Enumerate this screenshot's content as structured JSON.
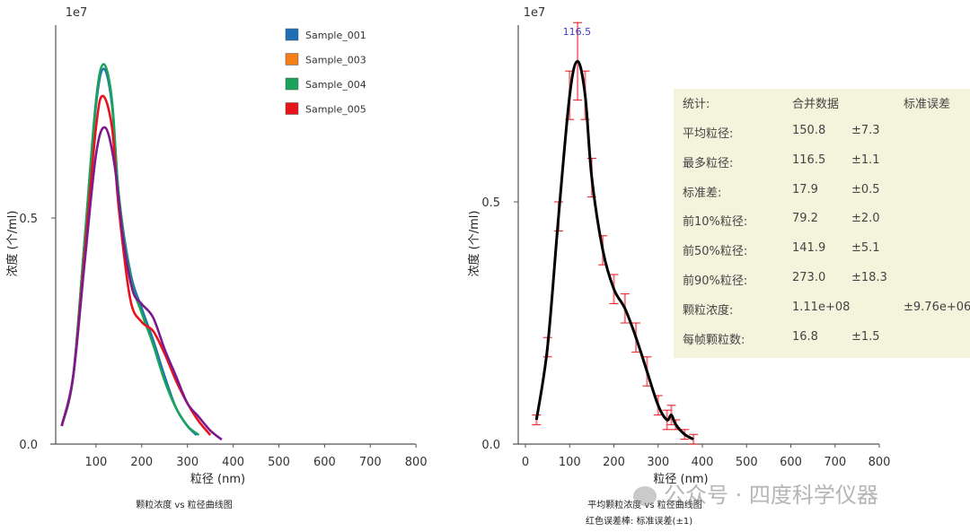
{
  "chart_data": [
    {
      "type": "line",
      "title": "颗粒浓度 vs 粒径曲线图",
      "xlabel": "粒径 (nm)",
      "ylabel": "浓度 (个/ml)",
      "y_multiplier": "1e7",
      "xlim": [
        12,
        800
      ],
      "ylim": [
        0,
        1.0
      ],
      "xticks": [
        "100",
        "200",
        "300",
        "400",
        "500",
        "600",
        "700",
        "800"
      ],
      "yticks": [
        "0.0",
        "0.5"
      ],
      "legend_placement": "top-right",
      "legend": [
        {
          "name": "Sample_001",
          "color": "#1f6fb5"
        },
        {
          "name": "Sample_003",
          "color": "#f57f17"
        },
        {
          "name": "Sample_004",
          "color": "#1aa35a"
        },
        {
          "name": "Sample_005",
          "color": "#e8141c"
        }
      ],
      "series": [
        {
          "name": "Sample_001",
          "color": "#1f6fb5",
          "x": [
            25,
            50,
            75,
            100,
            117,
            135,
            150,
            175,
            200,
            225,
            250,
            275,
            300,
            320
          ],
          "y": [
            0.04,
            0.15,
            0.45,
            0.75,
            0.83,
            0.75,
            0.55,
            0.38,
            0.3,
            0.23,
            0.15,
            0.08,
            0.04,
            0.02
          ]
        },
        {
          "name": "Sample_004",
          "color": "#1aa35a",
          "x": [
            25,
            50,
            75,
            100,
            117,
            135,
            150,
            175,
            200,
            225,
            250,
            275,
            300,
            325
          ],
          "y": [
            0.04,
            0.15,
            0.45,
            0.76,
            0.84,
            0.76,
            0.55,
            0.37,
            0.29,
            0.22,
            0.14,
            0.08,
            0.04,
            0.02
          ]
        },
        {
          "name": "Sample_005",
          "color": "#e8141c",
          "x": [
            25,
            50,
            75,
            100,
            115,
            135,
            150,
            175,
            200,
            225,
            250,
            275,
            300,
            325,
            350
          ],
          "y": [
            0.04,
            0.15,
            0.42,
            0.7,
            0.77,
            0.7,
            0.52,
            0.32,
            0.27,
            0.25,
            0.2,
            0.14,
            0.09,
            0.05,
            0.02
          ]
        },
        {
          "color": "#7b1a8c",
          "x": [
            25,
            50,
            75,
            100,
            120,
            140,
            160,
            180,
            200,
            225,
            250,
            275,
            300,
            325,
            350,
            375
          ],
          "y": [
            0.04,
            0.15,
            0.4,
            0.64,
            0.7,
            0.62,
            0.45,
            0.34,
            0.31,
            0.28,
            0.21,
            0.15,
            0.09,
            0.06,
            0.03,
            0.01
          ]
        }
      ]
    },
    {
      "type": "line",
      "title": "平均颗粒浓度 vs 粒径曲线图",
      "subtitle": "红色误差棒: 标准误差(±1)",
      "xlabel": "粒径 (nm)",
      "ylabel": "浓度 (个/ml)",
      "y_multiplier": "1e7",
      "xlim": [
        -15,
        800
      ],
      "ylim": [
        0,
        0.92
      ],
      "xticks": [
        "0",
        "100",
        "200",
        "300",
        "400",
        "500",
        "600",
        "700",
        "800"
      ],
      "yticks": [
        "0.0",
        "0.5"
      ],
      "peak_label": "116.5",
      "peak_label_color": "#3a3ac8",
      "series": [
        {
          "color": "#000000",
          "error_color": "#e8141c",
          "x": [
            25,
            50,
            75,
            100,
            118,
            135,
            150,
            175,
            200,
            225,
            250,
            275,
            300,
            320,
            330,
            340,
            360,
            380
          ],
          "y": [
            0.05,
            0.2,
            0.47,
            0.72,
            0.79,
            0.72,
            0.55,
            0.4,
            0.32,
            0.28,
            0.22,
            0.15,
            0.08,
            0.05,
            0.06,
            0.04,
            0.02,
            0.01
          ],
          "err": [
            0.01,
            0.02,
            0.03,
            0.05,
            0.08,
            0.05,
            0.04,
            0.03,
            0.03,
            0.03,
            0.03,
            0.03,
            0.02,
            0.02,
            0.02,
            0.01,
            0.01,
            0.01
          ]
        }
      ]
    }
  ],
  "stats_table": {
    "headers": [
      "统计:",
      "合并数据",
      "标准误差"
    ],
    "rows": [
      [
        "平均粒径:",
        "150.8",
        "±7.3",
        ""
      ],
      [
        "最多粒径:",
        "116.5",
        "±1.1",
        ""
      ],
      [
        "标准差:",
        "17.9",
        "±0.5",
        ""
      ],
      [
        "前10%粒径:",
        "79.2",
        "±2.0",
        ""
      ],
      [
        "前50%粒径:",
        "141.9",
        "±5.1",
        ""
      ],
      [
        "前90%粒径:",
        "273.0",
        "±18.3",
        ""
      ],
      [
        "颗粒浓度:",
        "1.11e+08",
        "",
        "±9.76e+06"
      ],
      [
        "每帧颗粒数:",
        "16.8",
        "±1.5",
        ""
      ]
    ]
  },
  "watermark": "公众号 · 四度科学仪器"
}
